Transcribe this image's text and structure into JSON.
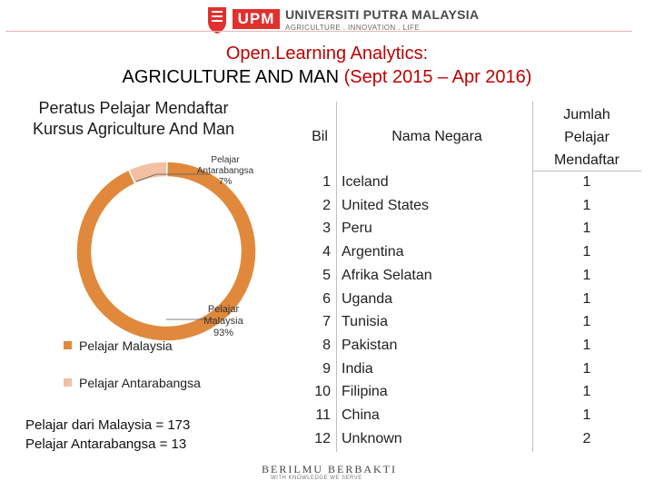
{
  "header": {
    "logo_abbr": "UPM",
    "university": "UNIVERSITI PUTRA MALAYSIA",
    "tagline": "AGRICULTURE . INNOVATION . LIFE"
  },
  "title_line1": "Open.Learning Analytics:",
  "title_line2_main": "AGRICULTURE AND MAN",
  "title_line2_period": "(Sept 2015 – Apr 2016)",
  "chart_data": [
    {
      "type": "pie",
      "title": "Peratus Pelajar Mendaftar Kursus Agriculture And Man",
      "categories": [
        "Pelajar Malaysia",
        "Pelajar Antarabangsa"
      ],
      "values": [
        93,
        7
      ],
      "data_labels": [
        "Pelajar Malaysia 93%",
        "Pelajar Antarabangsa 7%"
      ],
      "colors": [
        "#e0893c",
        "#f3c0a4"
      ],
      "legend_placement": "left"
    },
    {
      "type": "table",
      "columns": [
        "Bil",
        "Nama Negara",
        "Jumlah Pelajar Mendaftar"
      ],
      "rows": [
        [
          "1",
          "Iceland",
          "1"
        ],
        [
          "2",
          "United States",
          "1"
        ],
        [
          "3",
          "Peru",
          "1"
        ],
        [
          "4",
          "Argentina",
          "1"
        ],
        [
          "5",
          "Afrika Selatan",
          "1"
        ],
        [
          "6",
          "Uganda",
          "1"
        ],
        [
          "7",
          "Tunisia",
          "1"
        ],
        [
          "8",
          "Pakistan",
          "1"
        ],
        [
          "9",
          "India",
          "1"
        ],
        [
          "10",
          "Filipina",
          "1"
        ],
        [
          "11",
          "China",
          "1"
        ],
        [
          "12",
          "Unknown",
          "2"
        ]
      ]
    }
  ],
  "donut_labels": {
    "intl_line1": "Pelajar",
    "intl_line2": "Antarabangsa",
    "intl_pct": "7%",
    "my_line1": "Pelajar",
    "my_line2": "Malaysia",
    "my_pct": "93%"
  },
  "summary": {
    "line1": "Pelajar dari Malaysia = 173",
    "line2": "Pelajar Antarabangsa = 13"
  },
  "table_headers": {
    "bil": "Bil",
    "country": "Nama Negara",
    "total_1": "Jumlah",
    "total_2": "Pelajar",
    "total_3": "Mendaftar"
  },
  "footer": {
    "motto": "BERILMU BERBAKTI",
    "sub": "WITH KNOWLEDGE WE SERVE"
  }
}
